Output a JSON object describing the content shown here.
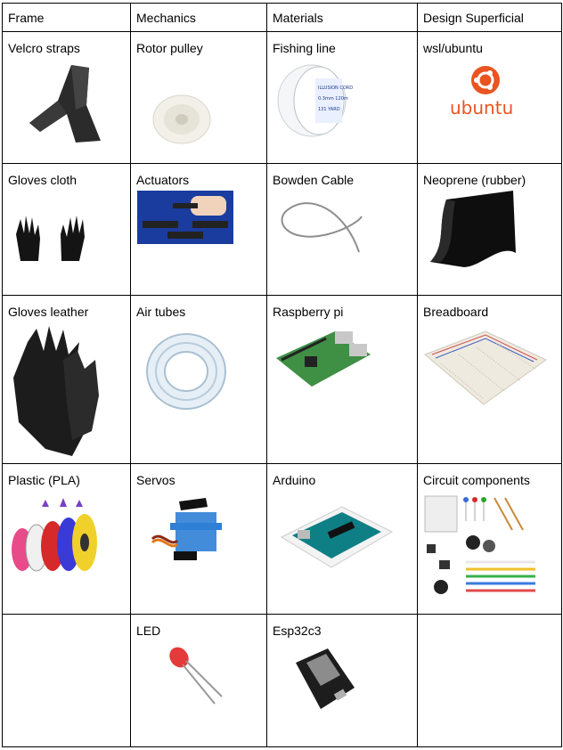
{
  "headers": [
    "Frame",
    "Mechanics",
    "Materials",
    "Design Superficial"
  ],
  "rows": [
    [
      {
        "label": "Velcro straps",
        "image": "velcro-strap-photo"
      },
      {
        "label": "Rotor pulley",
        "image": "rotor-pulley-photo"
      },
      {
        "label": "Fishing line",
        "image": "fishing-line-spool-photo",
        "spool_text": [
          "ILLUSION CORD",
          "0.3mm 120m",
          "131 YARD"
        ]
      },
      {
        "label": "wsl/ubuntu",
        "image": "ubuntu-logo",
        "logo_text": "ubuntu"
      }
    ],
    [
      {
        "label": "Gloves cloth",
        "image": "cloth-gloves-photo"
      },
      {
        "label": "Actuators",
        "image": "actuators-photo"
      },
      {
        "label": "Bowden Cable",
        "image": "bowden-cable-photo"
      },
      {
        "label": "Neoprene (rubber)",
        "image": "neoprene-sheet-photo"
      }
    ],
    [
      {
        "label": "Gloves leather",
        "image": "leather-gloves-photo"
      },
      {
        "label": "Air tubes",
        "image": "air-tubes-photo"
      },
      {
        "label": "Raspberry pi",
        "image": "raspberry-pi-photo"
      },
      {
        "label": "Breadboard",
        "image": "breadboard-photo"
      }
    ],
    [
      {
        "label": "Plastic (PLA)",
        "image": "pla-filament-photo"
      },
      {
        "label": "Servos",
        "image": "servo-photo"
      },
      {
        "label": "Arduino",
        "image": "arduino-photo"
      },
      {
        "label": "Circuit components",
        "image": "circuit-components-photo"
      }
    ],
    [
      {
        "label": "",
        "image": ""
      },
      {
        "label": "LED",
        "image": "led-photo"
      },
      {
        "label": "Esp32c3",
        "image": "esp32c3-photo"
      },
      {
        "label": "",
        "image": ""
      }
    ]
  ],
  "colors": {
    "ubuntu_orange": "#e95420",
    "border": "#000000"
  }
}
